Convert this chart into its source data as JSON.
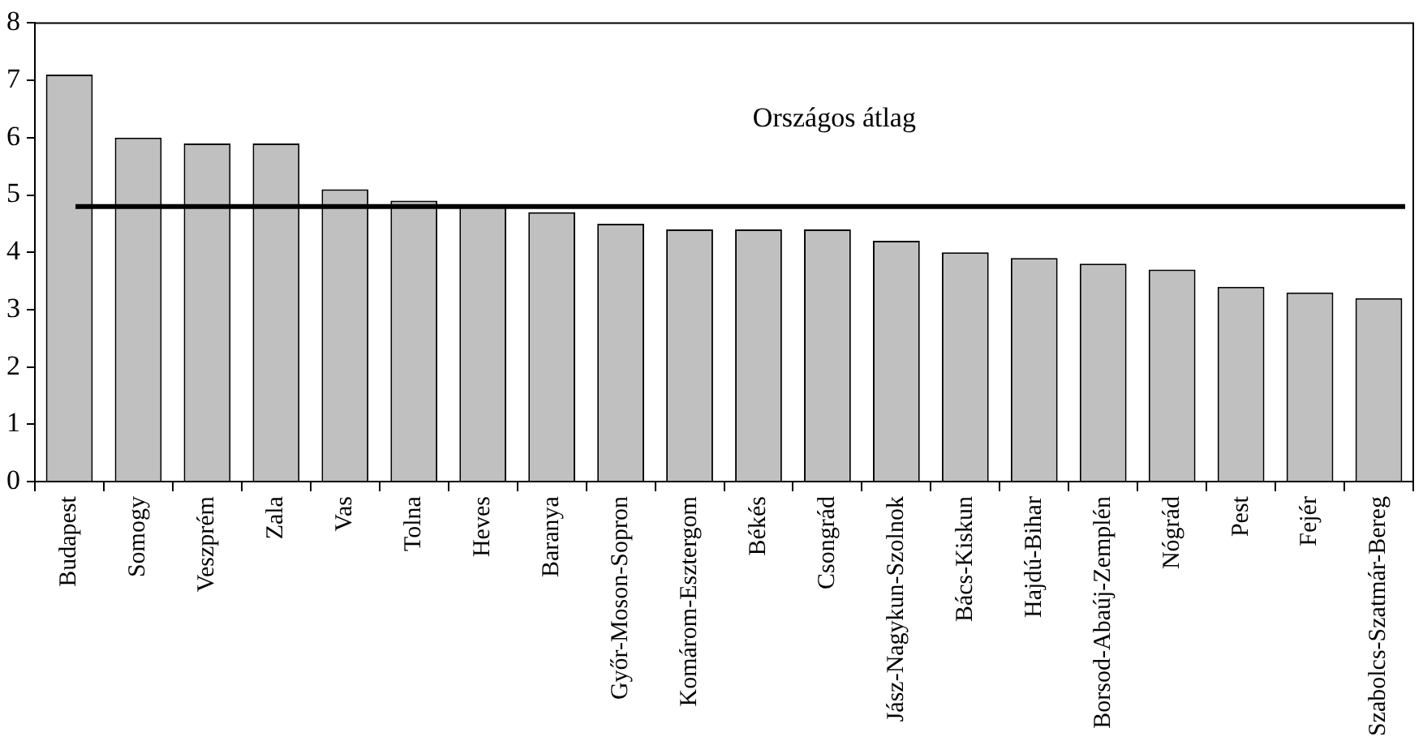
{
  "chart_data": {
    "type": "bar",
    "categories": [
      "Budapest",
      "Somogy",
      "Veszprém",
      "Zala",
      "Vas",
      "Tolna",
      "Heves",
      "Baranya",
      "Győr-Moson-Sopron",
      "Komárom-Esztergom",
      "Békés",
      "Csongrád",
      "Jász-Nagykun-Szolnok",
      "Bács-Kiskun",
      "Hajdú-Bihar",
      "Borsod-Abaúj-Zemplén",
      "Nógrád",
      "Pest",
      "Fejér",
      "Szabolcs-Szatmár-Bereg"
    ],
    "values": [
      7.1,
      6.0,
      5.9,
      5.9,
      5.1,
      4.9,
      4.8,
      4.7,
      4.5,
      4.4,
      4.4,
      4.4,
      4.2,
      4.0,
      3.9,
      3.8,
      3.7,
      3.4,
      3.3,
      3.2
    ],
    "color": "#c0c0c0",
    "ylim": [
      0,
      8
    ],
    "yticks": [
      0,
      1,
      2,
      3,
      4,
      5,
      6,
      7,
      8
    ],
    "ref_lines": [
      {
        "axis": "y",
        "value": 4.8,
        "label": "Országos átlag",
        "color": "#000000"
      }
    ],
    "grid": false,
    "legend": false
  }
}
